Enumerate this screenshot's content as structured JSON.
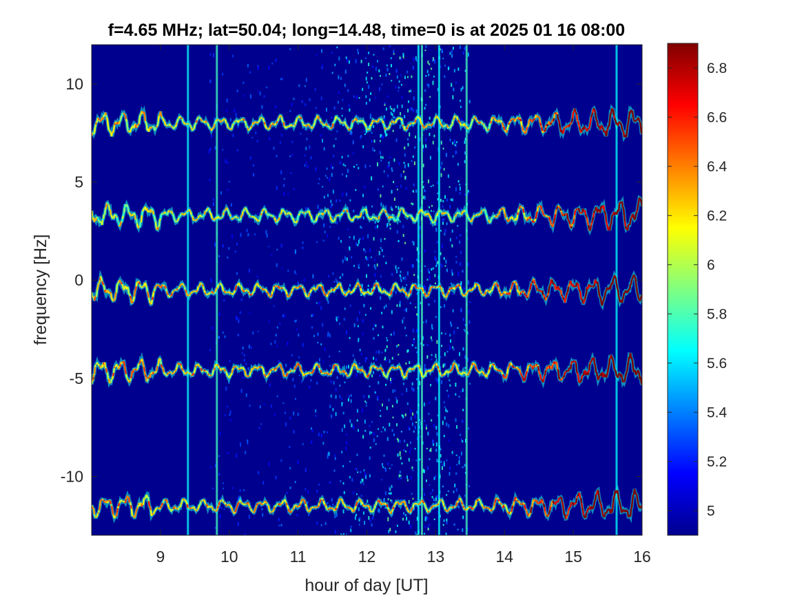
{
  "chart_data": {
    "type": "heatmap",
    "title": "f=4.65 MHz;  lat=50.04; long=14.48, time=0 is at 2025 01 16 08:00",
    "xlabel": "hour of day [UT]",
    "ylabel": "frequency [Hz]",
    "xlim": [
      8,
      16
    ],
    "ylim": [
      -13,
      12
    ],
    "x_ticks": [
      9,
      10,
      11,
      12,
      13,
      14,
      15,
      16
    ],
    "x_tick_labels": [
      "9",
      "10",
      "11",
      "12",
      "13",
      "14",
      "15",
      "16"
    ],
    "y_ticks": [
      10,
      5,
      0,
      -5,
      -10
    ],
    "y_tick_labels": [
      "10",
      "5",
      "0",
      "-5",
      "-10"
    ],
    "colormap": "jet",
    "background_color": "#00008f",
    "colorbar": {
      "clim": [
        4.9,
        6.9
      ],
      "ticks": [
        6.8,
        6.6,
        6.4,
        6.2,
        6,
        5.8,
        5.6,
        5.4,
        5.2,
        5
      ],
      "tick_labels": [
        "6.8",
        "6.6",
        "6.4",
        "6.2",
        "6",
        "5.8",
        "5.6",
        "5.4",
        "5.2",
        "5"
      ]
    },
    "traces": [
      {
        "center_hz": 8.0,
        "value_level": 6.4
      },
      {
        "center_hz": 3.3,
        "value_level": 6.3
      },
      {
        "center_hz": -0.5,
        "value_level": 6.5
      },
      {
        "center_hz": -4.6,
        "value_level": 6.5
      },
      {
        "center_hz": -11.5,
        "value_level": 6.5
      }
    ],
    "vertical_lines_hours": [
      9.4,
      9.82,
      12.75,
      12.8,
      13.05,
      13.45,
      15.63
    ],
    "noise_band_hours": [
      11.3,
      13.5
    ],
    "grid": false
  }
}
